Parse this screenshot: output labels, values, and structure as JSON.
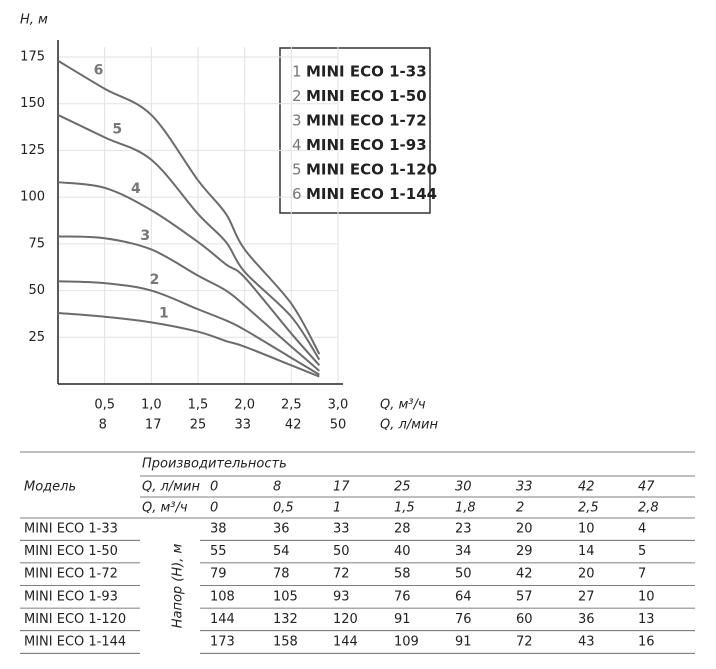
{
  "chart_data": {
    "type": "line",
    "ylabel": "H, м",
    "xlabel": "Q, м³/ч",
    "x2label": "Q, л/мин",
    "x": [
      0,
      0.5,
      1,
      1.5,
      1.8,
      2,
      2.5,
      2.8
    ],
    "xlim": [
      0,
      3.0
    ],
    "xticks": [
      {
        "value": 0.5,
        "label": "0,5"
      },
      {
        "value": 1.0,
        "label": "1,0"
      },
      {
        "value": 1.5,
        "label": "1,5"
      },
      {
        "value": 2.0,
        "label": "2,0"
      },
      {
        "value": 2.5,
        "label": "2,5"
      },
      {
        "value": 3.0,
        "label": "3,0"
      }
    ],
    "x2lim": [
      0,
      50
    ],
    "x2ticks": [
      8,
      17,
      25,
      33,
      42,
      50
    ],
    "ylim": [
      0,
      175
    ],
    "yticks": [
      25,
      50,
      75,
      100,
      125,
      150,
      175
    ],
    "grid": true,
    "series": [
      {
        "label": "1",
        "name": "MINI ECO 1-33",
        "color": "#6b6b6b",
        "values": [
          38,
          36,
          33,
          28,
          23,
          20,
          10,
          4
        ]
      },
      {
        "label": "2",
        "name": "MINI ECO 1-50",
        "color": "#6b6b6b",
        "values": [
          55,
          54,
          50,
          40,
          34,
          29,
          14,
          5
        ]
      },
      {
        "label": "3",
        "name": "MINI ECO 1-72",
        "color": "#6b6b6b",
        "values": [
          79,
          78,
          72,
          58,
          50,
          42,
          20,
          7
        ]
      },
      {
        "label": "4",
        "name": "MINI ECO 1-93",
        "color": "#6b6b6b",
        "values": [
          108,
          105,
          93,
          76,
          64,
          57,
          27,
          10
        ]
      },
      {
        "label": "5",
        "name": "MINI ECO 1-120",
        "color": "#6b6b6b",
        "values": [
          144,
          132,
          120,
          91,
          76,
          60,
          36,
          13
        ]
      },
      {
        "label": "6",
        "name": "MINI ECO 1-144",
        "color": "#6b6b6b",
        "values": [
          173,
          158,
          144,
          109,
          91,
          72,
          43,
          16
        ]
      }
    ]
  },
  "table": {
    "model_header": "Модель",
    "group_header": "Производительность",
    "head_label": "Напор (H), м",
    "flow_rows": [
      {
        "label": "Q, л/мин",
        "values": [
          "0",
          "8",
          "17",
          "25",
          "30",
          "33",
          "42",
          "47"
        ]
      },
      {
        "label": "Q, м³/ч",
        "values": [
          "0",
          "0,5",
          "1",
          "1,5",
          "1,8",
          "2",
          "2,5",
          "2,8"
        ]
      }
    ],
    "rows": [
      {
        "model": "MINI ECO 1-33",
        "values": [
          38,
          36,
          33,
          28,
          23,
          20,
          10,
          4
        ]
      },
      {
        "model": "MINI ECO 1-50",
        "values": [
          55,
          54,
          50,
          40,
          34,
          29,
          14,
          5
        ]
      },
      {
        "model": "MINI ECO 1-72",
        "values": [
          79,
          78,
          72,
          58,
          50,
          42,
          20,
          7
        ]
      },
      {
        "model": "MINI ECO 1-93",
        "values": [
          108,
          105,
          93,
          76,
          64,
          57,
          27,
          10
        ]
      },
      {
        "model": "MINI ECO 1-120",
        "values": [
          144,
          132,
          120,
          91,
          76,
          60,
          36,
          13
        ]
      },
      {
        "model": "MINI ECO 1-144",
        "values": [
          173,
          158,
          144,
          109,
          91,
          72,
          43,
          16
        ]
      }
    ]
  }
}
